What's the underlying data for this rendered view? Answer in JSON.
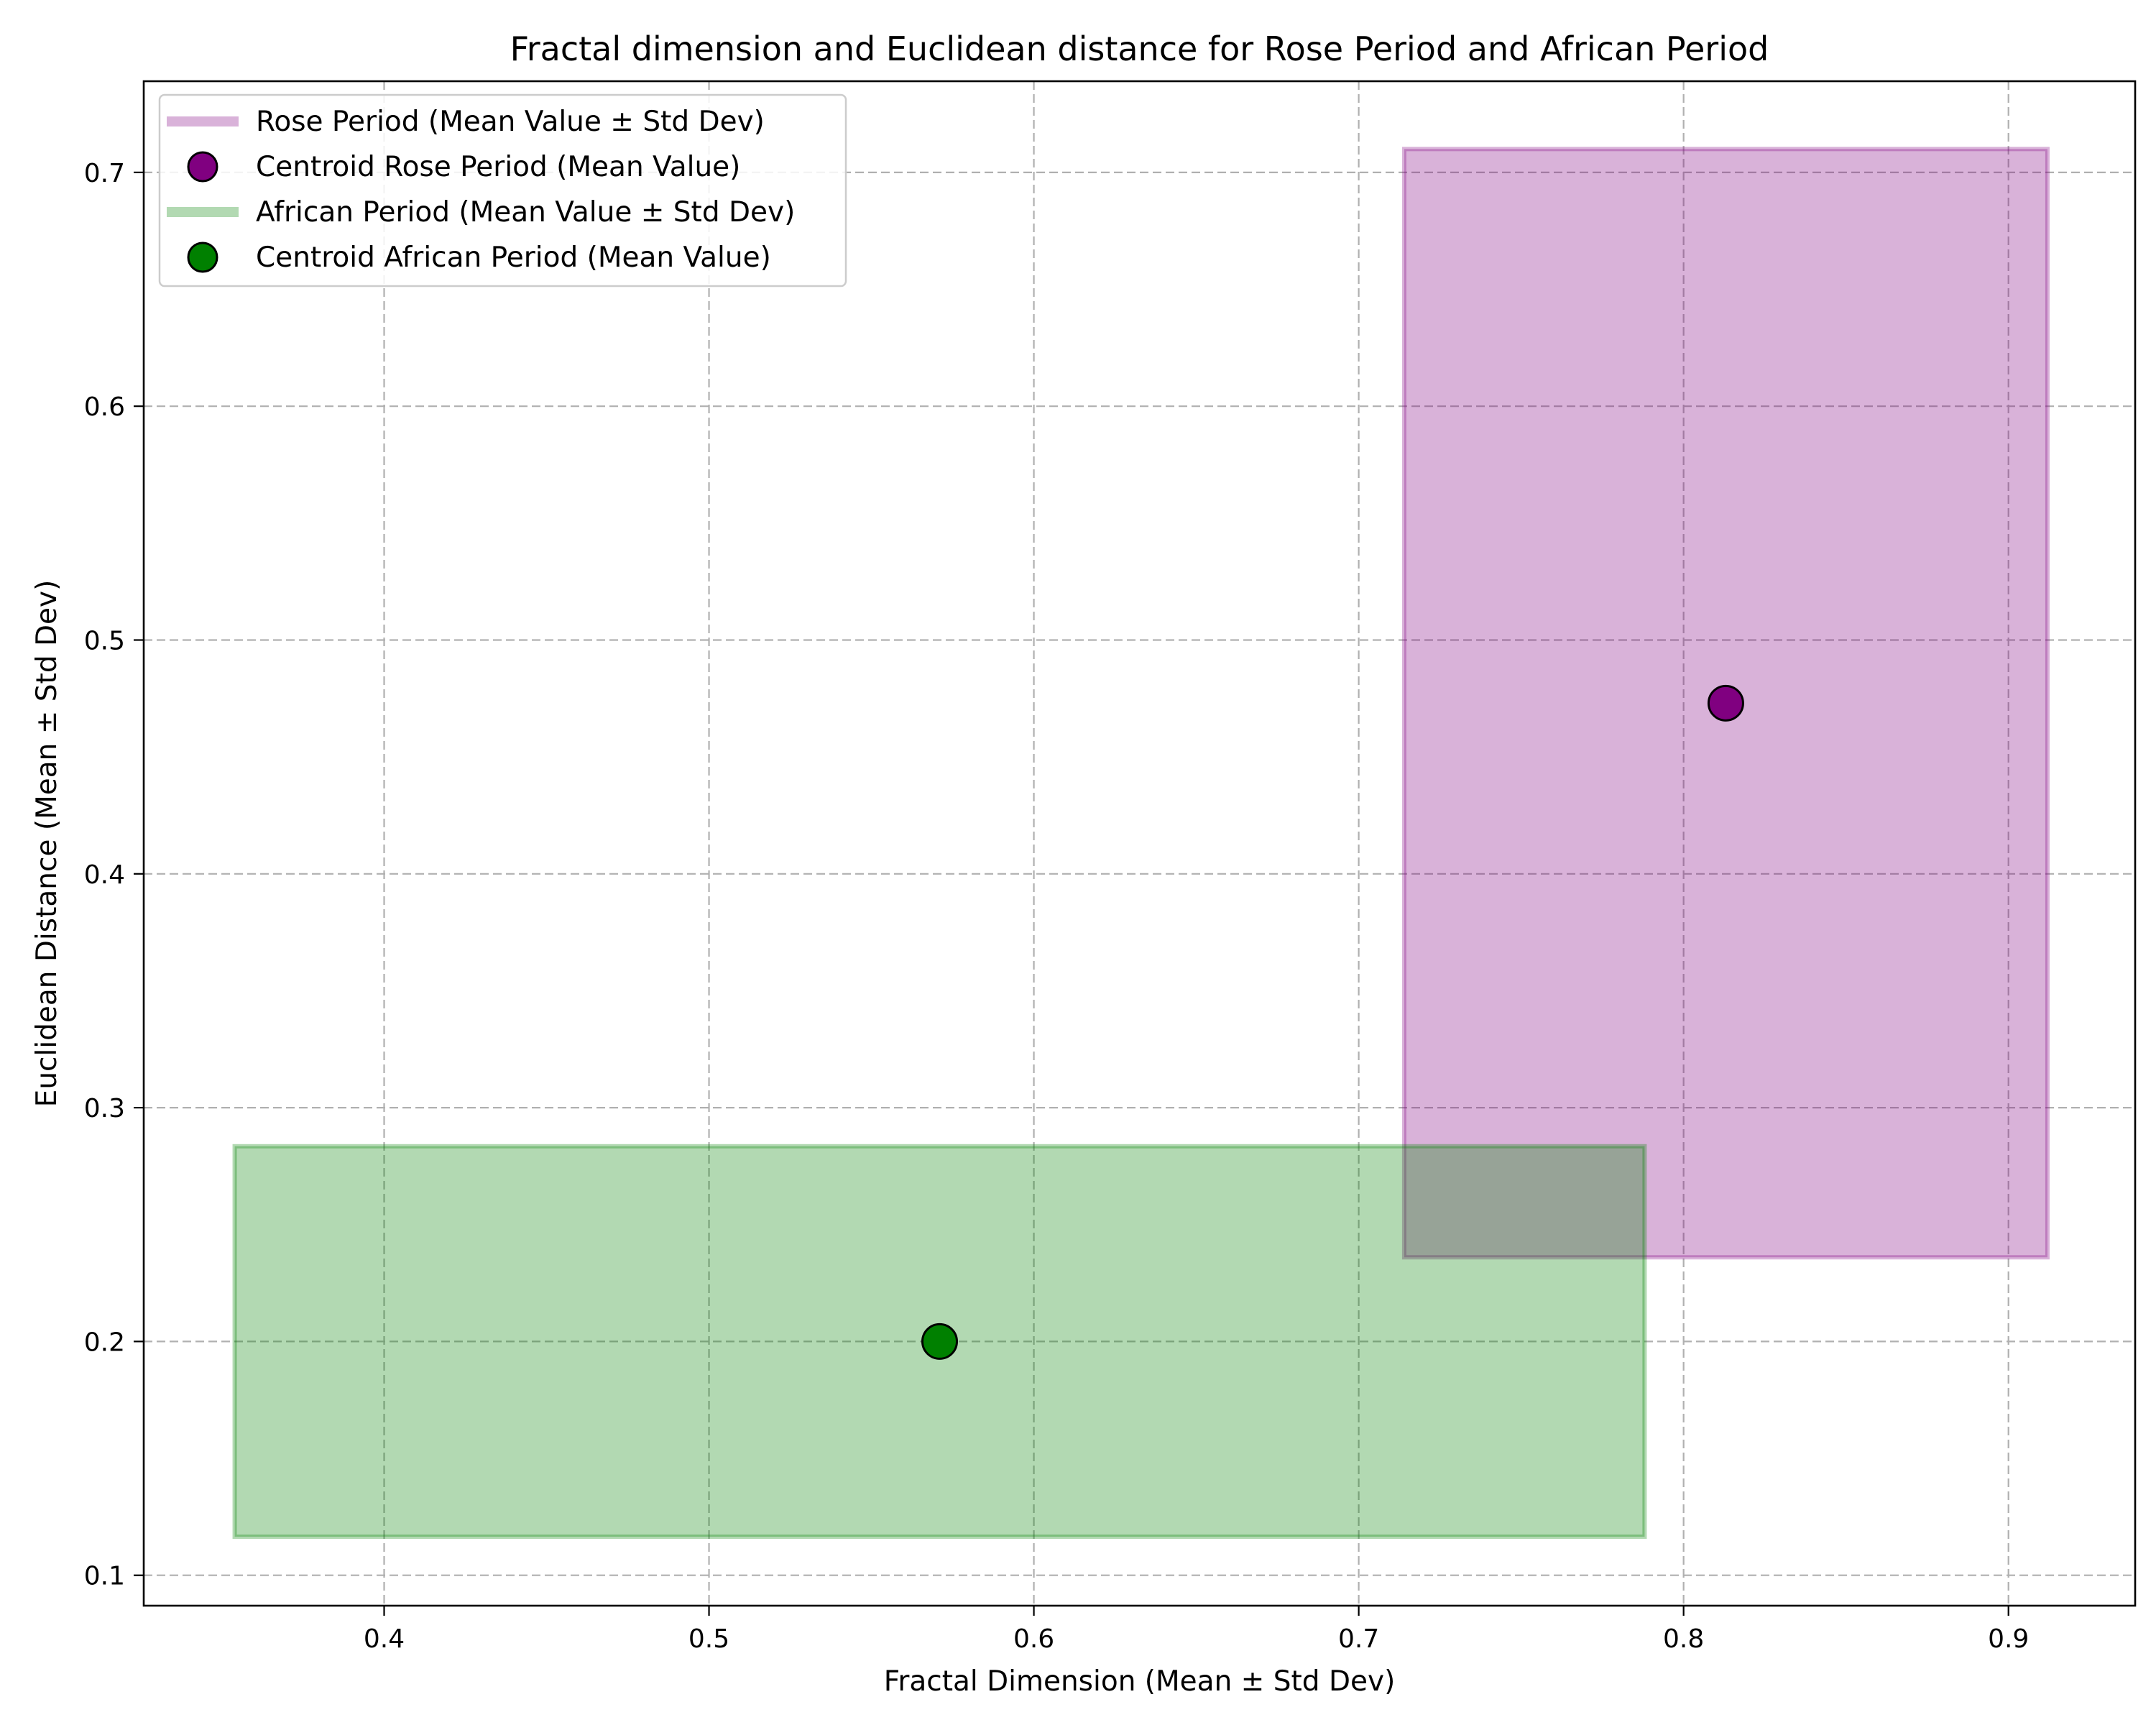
{
  "chart_data": {
    "type": "scatter",
    "title": "Fractal dimension and Euclidean distance for Rose Period and African Period",
    "xlabel": "Fractal Dimension (Mean ± Std Dev)",
    "ylabel": "Euclidean Distance (Mean ± Std Dev)",
    "xlim": [
      0.326,
      0.939
    ],
    "ylim": [
      0.087,
      0.739
    ],
    "xticks": [
      0.4,
      0.5,
      0.6,
      0.7,
      0.8,
      0.9
    ],
    "xtick_labels": [
      "0.4",
      "0.5",
      "0.6",
      "0.7",
      "0.8",
      "0.9"
    ],
    "yticks": [
      0.1,
      0.2,
      0.3,
      0.4,
      0.5,
      0.6,
      0.7
    ],
    "ytick_labels": [
      "0.1",
      "0.2",
      "0.3",
      "0.4",
      "0.5",
      "0.6",
      "0.7"
    ],
    "grid": true,
    "legend_position": "top-left",
    "series": [
      {
        "name": "Rose Period",
        "box_legend": "Rose Period (Mean Value ± Std Dev)",
        "centroid_legend": "Centroid Rose Period (Mean Value)",
        "x_mean": 0.813,
        "x_std": 0.099,
        "y_mean": 0.473,
        "y_std": 0.237,
        "box_color": "#800080",
        "box_fill": "#d8b0d8",
        "marker_color": "#800080"
      },
      {
        "name": "African Period",
        "box_legend": "African Period (Mean Value ± Std Dev)",
        "centroid_legend": "Centroid African Period (Mean Value)",
        "x_mean": 0.571,
        "x_std": 0.217,
        "y_mean": 0.2,
        "y_std": 0.0835,
        "box_color": "#008000",
        "box_fill": "#b0d8b0",
        "marker_color": "#008000"
      }
    ]
  }
}
